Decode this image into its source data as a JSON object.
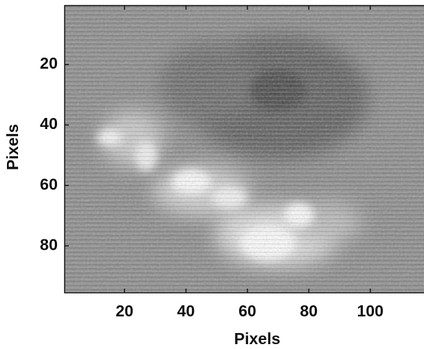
{
  "chart_data": {
    "type": "image",
    "xlabel": "Pixels",
    "ylabel": "Pixels",
    "xlim": [
      0.5,
      117.5
    ],
    "ylim": [
      95.5,
      0.5
    ],
    "xticks": [
      20,
      40,
      60,
      80,
      100
    ],
    "yticks": [
      20,
      40,
      60,
      80
    ]
  }
}
